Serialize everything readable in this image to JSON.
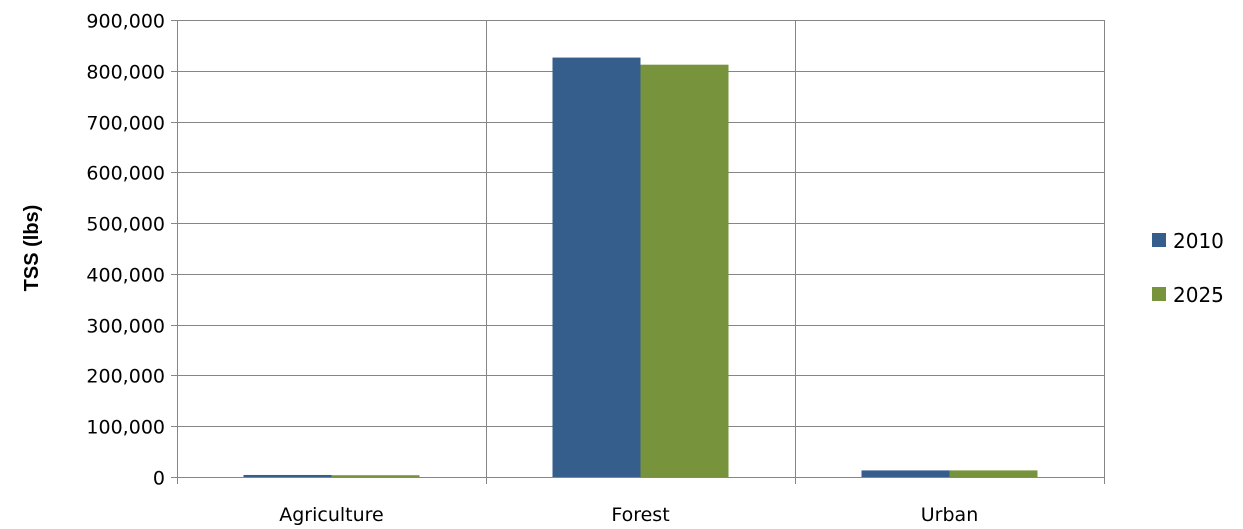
{
  "chart_data": {
    "type": "bar",
    "title": "",
    "xlabel": "",
    "ylabel": "TSS (lbs)",
    "categories": [
      "Agriculture",
      "Forest",
      "Urban"
    ],
    "series": [
      {
        "name": "2010",
        "values": [
          4000,
          826000,
          13000
        ],
        "color": "#355E8D"
      },
      {
        "name": "2025",
        "values": [
          3500,
          812000,
          13000
        ],
        "color": "#77933C"
      }
    ],
    "ylim": [
      0,
      900000
    ],
    "yticks": [
      0,
      100000,
      200000,
      300000,
      400000,
      500000,
      600000,
      700000,
      800000,
      900000
    ],
    "ytick_labels": [
      "0",
      "100,000",
      "200,000",
      "300,000",
      "400,000",
      "500,000",
      "600,000",
      "700,000",
      "800,000",
      "900,000"
    ],
    "grid": {
      "horizontal": true,
      "vertical": true
    },
    "legend": {
      "position": "right"
    },
    "colors": {
      "grid": "#868686",
      "axis": "#868686"
    }
  }
}
